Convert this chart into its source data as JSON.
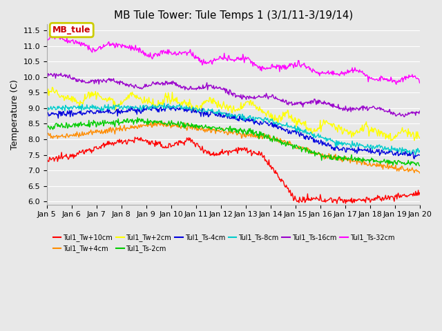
{
  "title": "MB Tule Tower: Tule Temps 1 (3/1/11-3/19/14)",
  "ylabel": "Temperature (C)",
  "ylim": [
    5.9,
    11.7
  ],
  "background_color": "#e8e8e8",
  "grid_color": "white",
  "series": [
    {
      "label": "Tul1_Tw+10cm",
      "color": "#ff0000"
    },
    {
      "label": "Tul1_Tw+4cm",
      "color": "#ff8c00"
    },
    {
      "label": "Tul1_Tw+2cm",
      "color": "#ffff00"
    },
    {
      "label": "Tul1_Ts-2cm",
      "color": "#00cc00"
    },
    {
      "label": "Tul1_Ts-4cm",
      "color": "#0000dd"
    },
    {
      "label": "Tul1_Ts-8cm",
      "color": "#00cccc"
    },
    {
      "label": "Tul1_Ts-16cm",
      "color": "#9900cc"
    },
    {
      "label": "Tul1_Ts-32cm",
      "color": "#ff00ff"
    }
  ],
  "xtick_labels": [
    "Jan 5",
    "Jan 6",
    "Jan 7",
    "Jan 8",
    "Jan 9",
    "Jan 10",
    "Jan 11",
    "Jan 12",
    "Jan 13",
    "Jan 14",
    "Jan 15",
    "Jan 16",
    "Jan 17",
    "Jan 18",
    "Jan 19",
    "Jan 20"
  ],
  "legend_label": "MB_tule",
  "legend_color": "#cc0000",
  "title_fontsize": 11,
  "tick_fontsize": 8
}
